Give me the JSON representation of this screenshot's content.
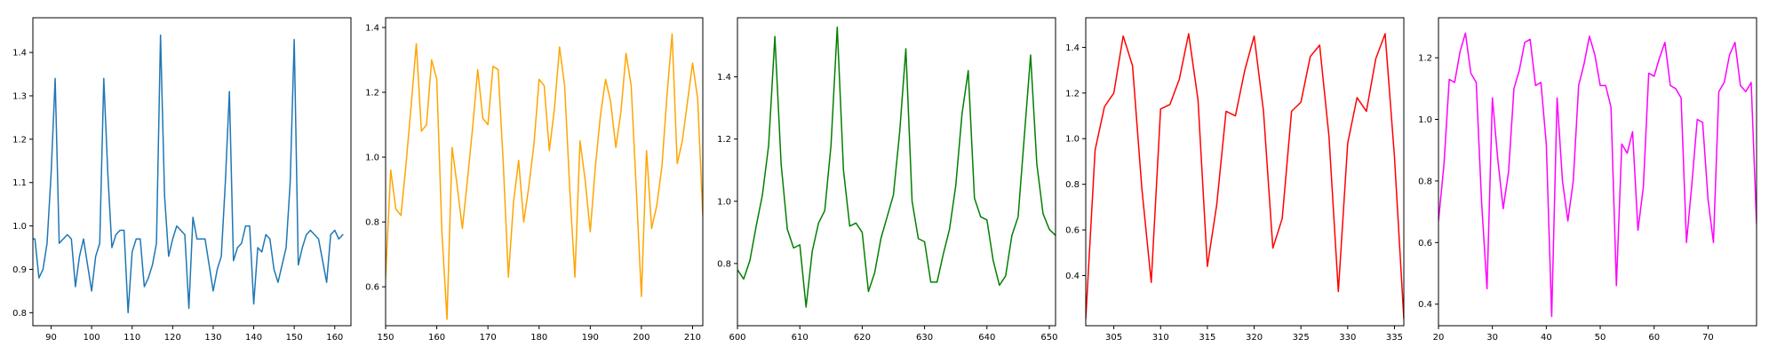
{
  "chart_data": [
    {
      "type": "line",
      "color": "#1f77b4",
      "xlim": [
        85.5,
        164
      ],
      "ylim": [
        0.77,
        1.48
      ],
      "xticks": [
        90,
        100,
        110,
        120,
        130,
        140,
        150,
        160
      ],
      "yticks": [
        0.8,
        0.9,
        1.0,
        1.1,
        1.2,
        1.3,
        1.4
      ],
      "series": [
        {
          "x_start": 85,
          "x_step": 1,
          "values": [
            0.97,
            0.97,
            0.88,
            0.9,
            0.96,
            1.12,
            1.34,
            0.96,
            0.97,
            0.98,
            0.97,
            0.86,
            0.93,
            0.97,
            0.91,
            0.85,
            0.93,
            0.96,
            1.34,
            1.12,
            0.95,
            0.98,
            0.99,
            0.99,
            0.8,
            0.94,
            0.97,
            0.97,
            0.86,
            0.88,
            0.91,
            0.96,
            1.44,
            1.07,
            0.93,
            0.97,
            1.0,
            0.99,
            0.98,
            0.81,
            1.02,
            0.97,
            0.97,
            0.97,
            0.91,
            0.85,
            0.9,
            0.93,
            1.1,
            1.31,
            0.92,
            0.95,
            0.96,
            1.0,
            1.0,
            0.82,
            0.95,
            0.94,
            0.98,
            0.97,
            0.9,
            0.87,
            0.91,
            0.95,
            1.1,
            1.43,
            0.91,
            0.95,
            0.98,
            0.99,
            0.98,
            0.97,
            0.92,
            0.87,
            0.98,
            0.99,
            0.97,
            0.98
          ]
        }
      ]
    },
    {
      "type": "line",
      "color": "#ffa500",
      "xlim": [
        150,
        212
      ],
      "ylim": [
        0.48,
        1.43
      ],
      "xticks": [
        150,
        160,
        170,
        180,
        190,
        200,
        210
      ],
      "yticks": [
        0.6,
        0.8,
        1.0,
        1.2,
        1.4
      ],
      "series": [
        {
          "x_start": 150,
          "x_step": 1,
          "values": [
            0.63,
            0.96,
            0.84,
            0.82,
            0.98,
            1.16,
            1.35,
            1.08,
            1.1,
            1.3,
            1.24,
            0.77,
            0.5,
            1.03,
            0.91,
            0.78,
            0.93,
            1.09,
            1.27,
            1.12,
            1.1,
            1.28,
            1.27,
            0.98,
            0.63,
            0.86,
            0.99,
            0.8,
            0.91,
            1.04,
            1.24,
            1.22,
            1.02,
            1.15,
            1.34,
            1.22,
            0.9,
            0.63,
            1.05,
            0.93,
            0.77,
            0.97,
            1.13,
            1.24,
            1.17,
            1.03,
            1.14,
            1.32,
            1.22,
            0.9,
            0.57,
            1.02,
            0.78,
            0.85,
            0.97,
            1.19,
            1.38,
            0.98,
            1.05,
            1.17,
            1.29,
            1.18,
            0.82
          ]
        }
      ]
    },
    {
      "type": "line",
      "color": "#008000",
      "xlim": [
        600,
        651
      ],
      "ylim": [
        0.6,
        1.59
      ],
      "xticks": [
        600,
        610,
        620,
        630,
        640,
        650
      ],
      "yticks": [
        0.8,
        1.0,
        1.2,
        1.4
      ],
      "series": [
        {
          "x_start": 600,
          "x_step": 1,
          "values": [
            0.78,
            0.75,
            0.81,
            0.92,
            1.02,
            1.18,
            1.53,
            1.12,
            0.91,
            0.85,
            0.86,
            0.66,
            0.84,
            0.93,
            0.97,
            1.18,
            1.56,
            1.1,
            0.92,
            0.93,
            0.9,
            0.71,
            0.77,
            0.88,
            0.95,
            1.02,
            1.22,
            1.49,
            1.0,
            0.88,
            0.87,
            0.74,
            0.74,
            0.83,
            0.91,
            1.05,
            1.28,
            1.42,
            1.01,
            0.95,
            0.94,
            0.81,
            0.73,
            0.76,
            0.89,
            0.95,
            1.21,
            1.47,
            1.12,
            0.96,
            0.91,
            0.89
          ]
        }
      ]
    },
    {
      "type": "line",
      "color": "#ff0000",
      "xlim": [
        302,
        336
      ],
      "ylim": [
        0.18,
        1.53
      ],
      "xticks": [
        305,
        310,
        315,
        320,
        325,
        330,
        335
      ],
      "yticks": [
        0.4,
        0.6,
        0.8,
        1.0,
        1.2,
        1.4
      ],
      "series": [
        {
          "x_start": 302,
          "x_step": 1,
          "values": [
            0.21,
            0.95,
            1.14,
            1.2,
            1.45,
            1.32,
            0.78,
            0.37,
            1.13,
            1.15,
            1.26,
            1.46,
            1.17,
            0.44,
            0.71,
            1.12,
            1.1,
            1.3,
            1.45,
            1.12,
            0.52,
            0.65,
            1.12,
            1.16,
            1.36,
            1.41,
            1.01,
            0.33,
            0.98,
            1.18,
            1.12,
            1.35,
            1.46,
            0.92,
            0.21
          ]
        }
      ]
    },
    {
      "type": "line",
      "color": "#ff00ff",
      "xlim": [
        20,
        79
      ],
      "ylim": [
        0.33,
        1.33
      ],
      "xticks": [
        20,
        30,
        40,
        50,
        60,
        70
      ],
      "yticks": [
        0.4,
        0.6,
        0.8,
        1.0,
        1.2
      ],
      "series": [
        {
          "x_start": 20,
          "x_step": 1,
          "values": [
            0.67,
            0.85,
            1.13,
            1.12,
            1.22,
            1.28,
            1.15,
            1.12,
            0.73,
            0.45,
            1.07,
            0.87,
            0.71,
            0.83,
            1.1,
            1.16,
            1.25,
            1.26,
            1.11,
            1.12,
            0.92,
            0.36,
            1.07,
            0.8,
            0.67,
            0.8,
            1.11,
            1.18,
            1.27,
            1.21,
            1.11,
            1.11,
            1.04,
            0.46,
            0.92,
            0.89,
            0.96,
            0.64,
            0.78,
            1.15,
            1.14,
            1.2,
            1.25,
            1.11,
            1.1,
            1.07,
            0.6,
            0.79,
            1.0,
            0.99,
            0.74,
            0.6,
            1.09,
            1.12,
            1.21,
            1.25,
            1.11,
            1.09,
            1.12,
            0.66
          ]
        }
      ]
    }
  ]
}
